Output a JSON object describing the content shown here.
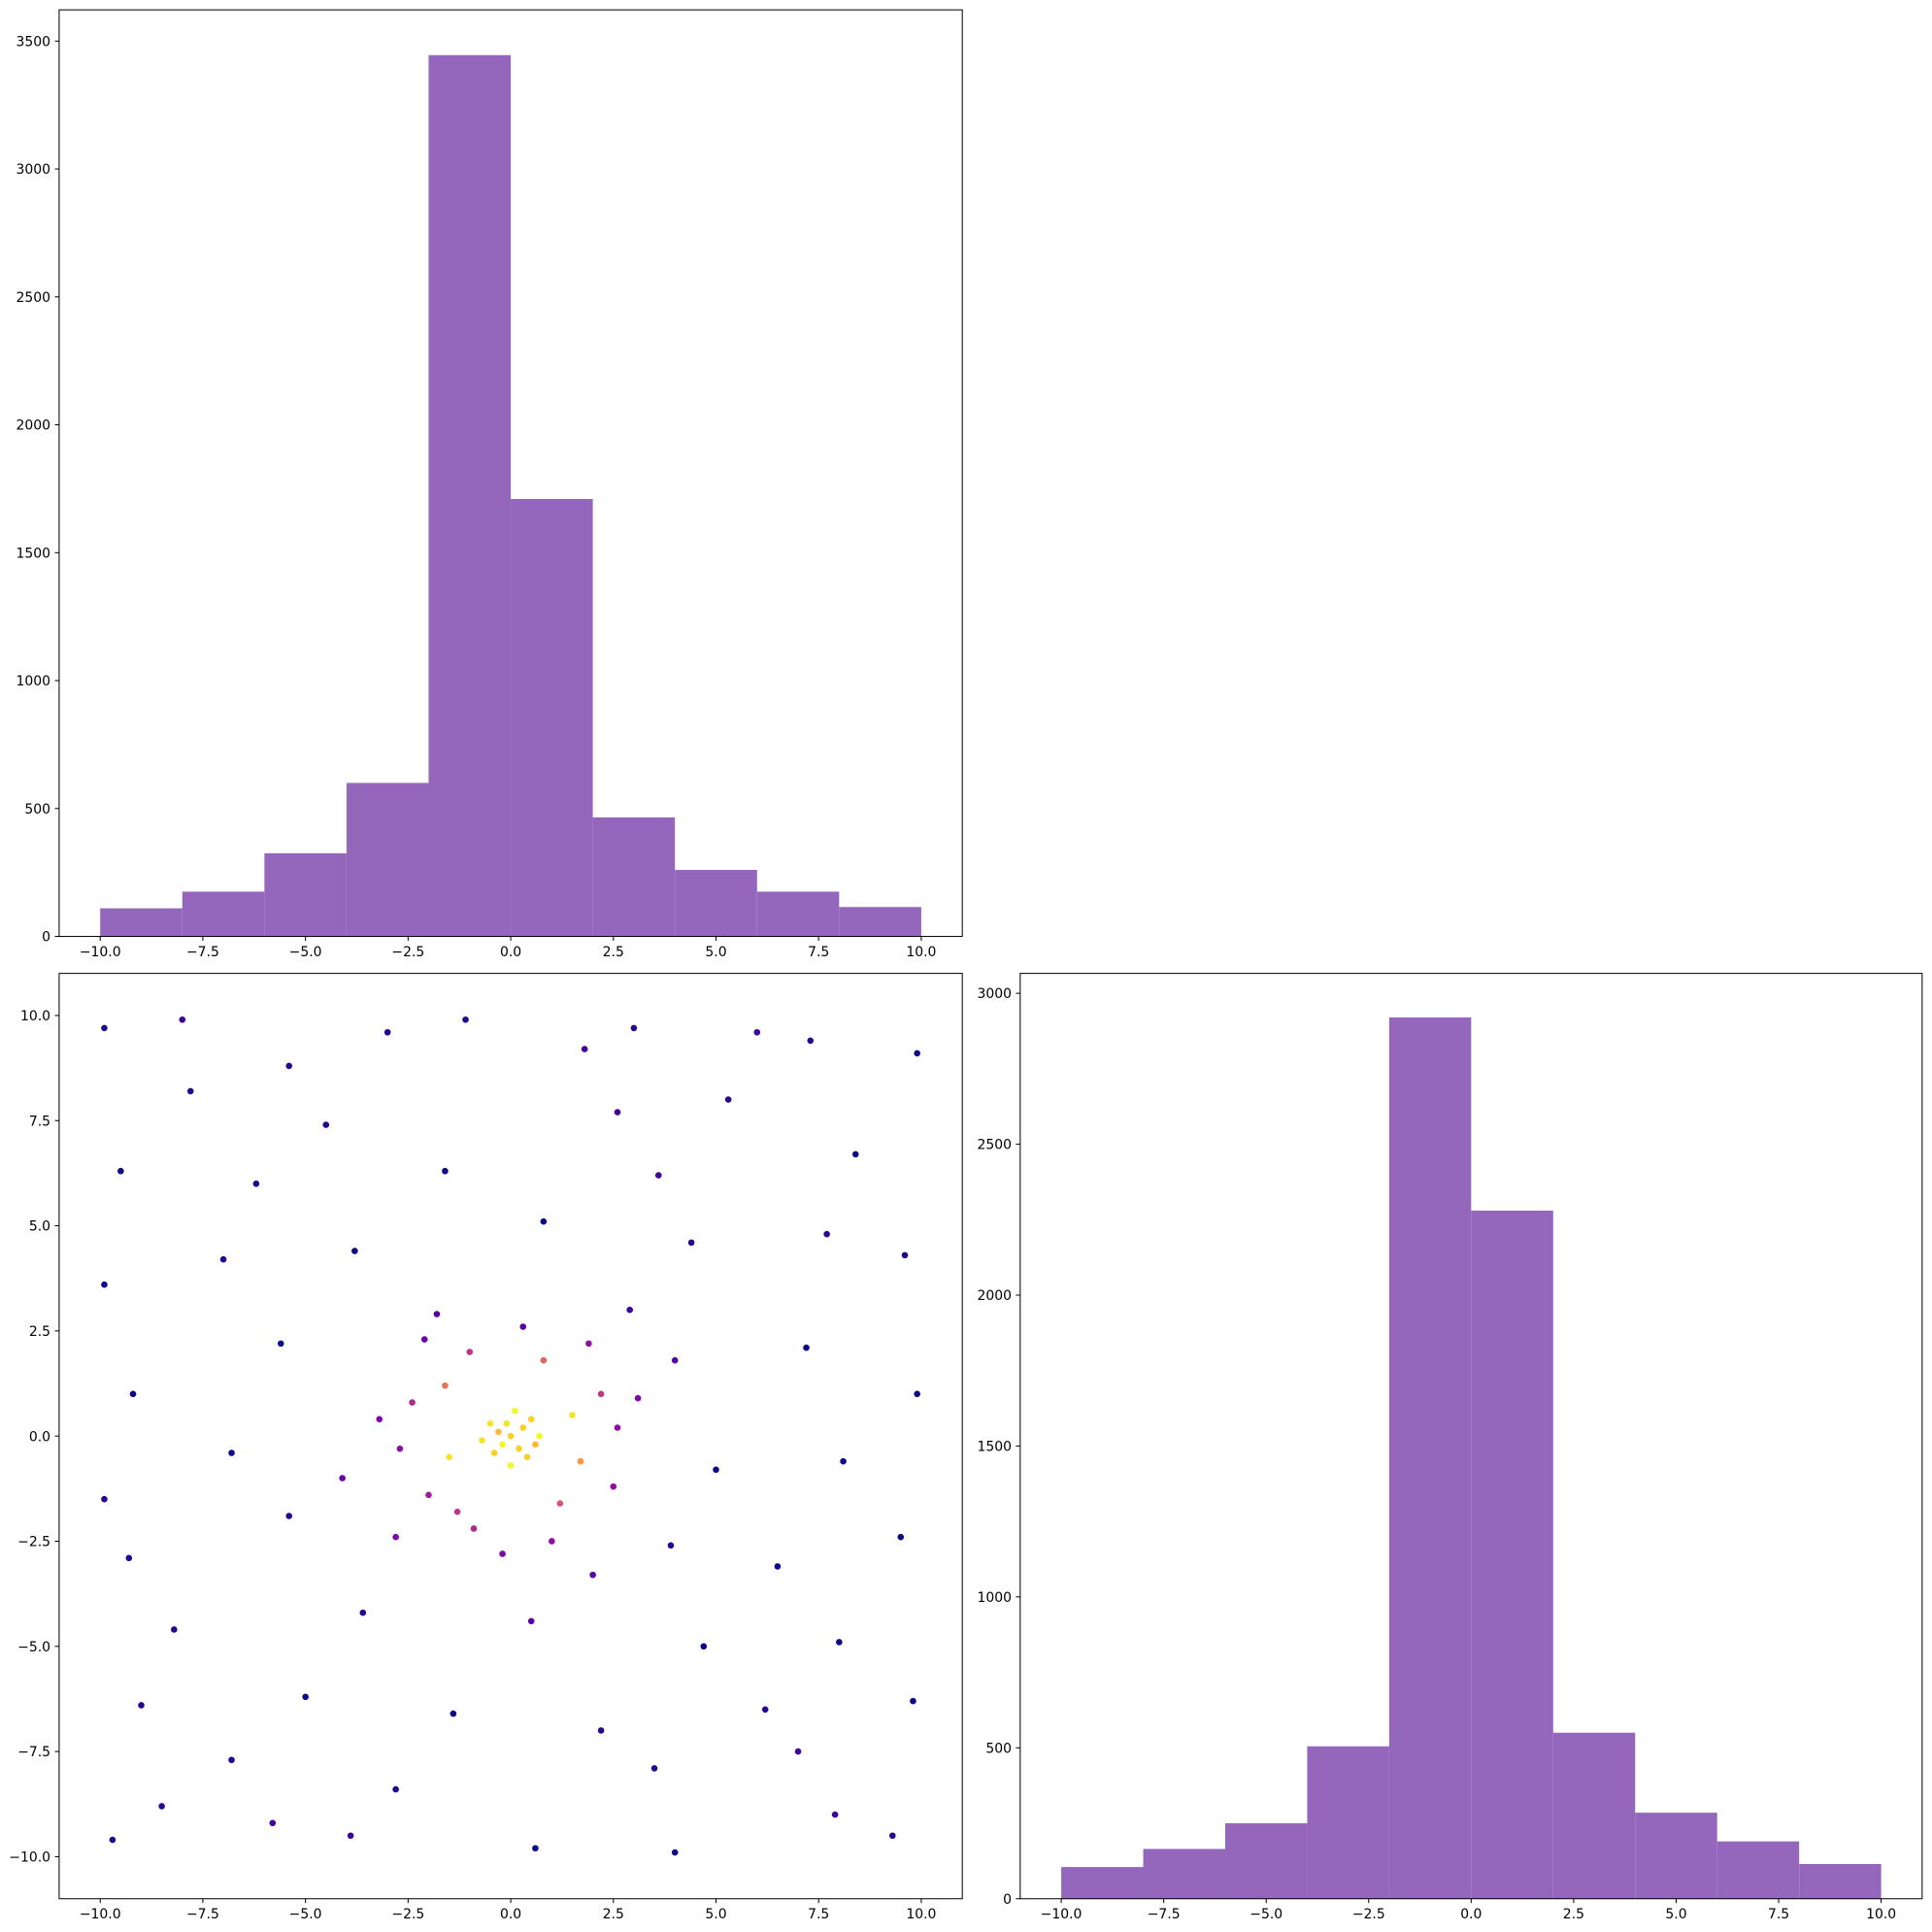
{
  "chart_data": [
    {
      "type": "histogram",
      "color": "#9467bd",
      "bins": [
        -10,
        -8,
        -6,
        -4,
        -2,
        0,
        2,
        4,
        6,
        8,
        10
      ],
      "values": [
        110,
        175,
        325,
        600,
        3445,
        1710,
        465,
        260,
        175,
        115
      ],
      "xlim": [
        -11,
        11
      ],
      "ylim": [
        0,
        3622
      ],
      "xticks": [
        {
          "value": -10,
          "label": "−10.0"
        },
        {
          "value": -7.5,
          "label": "−7.5"
        },
        {
          "value": -5,
          "label": "−5.0"
        },
        {
          "value": -2.5,
          "label": "−2.5"
        },
        {
          "value": 0,
          "label": "0.0"
        },
        2.5,
        {
          "value": 5,
          "label": "5.0"
        },
        7.5,
        {
          "value": 10,
          "label": "10.0"
        }
      ],
      "yticks": [
        0,
        500,
        1000,
        1500,
        2000,
        2500,
        3000,
        3500
      ]
    },
    {
      "type": "scatter",
      "colormap": [
        "#0d0887",
        "#5302a3",
        "#8b0aa5",
        "#b83289",
        "#db5c68",
        "#f48849",
        "#febd2a",
        "#f0f921"
      ],
      "x": [
        0,
        0.3,
        -0.3,
        0.2,
        -0.2,
        0.5,
        -0.5,
        0.4,
        -0.4,
        0.1,
        0,
        0.7,
        -0.7,
        0.6,
        -0.1,
        1.5,
        -1.5,
        0.8,
        -1,
        1.2,
        -1.3,
        2.2,
        -2.4,
        2.5,
        -2,
        0.3,
        -0.2,
        1.9,
        -2.1,
        2.6,
        -2.7,
        1,
        -0.9,
        1.7,
        -1.6,
        -9.9,
        -8,
        -3,
        -1.1,
        3,
        6,
        9.9,
        -9.5,
        -6.2,
        -4.5,
        2.6,
        5.3,
        8.4,
        -9.9,
        -7,
        -3.8,
        0.8,
        4.4,
        7.7,
        9.6,
        -9.2,
        -5.6,
        4,
        7.2,
        9.9,
        -9.9,
        -6.8,
        -4.1,
        5,
        8.1,
        -9.3,
        -5.4,
        3.9,
        6.5,
        9.5,
        -8.2,
        -3.6,
        0.5,
        4.7,
        8,
        -9,
        -5,
        -1.4,
        2.2,
        6.2,
        9.8,
        -8.5,
        -5.8,
        -2.8,
        0.6,
        4,
        7.9,
        -9.7,
        9.3,
        -1.8,
        2,
        -3.2,
        3.1,
        -2.8,
        2.9,
        -7.8,
        -5.4,
        1.8,
        7.3,
        -1.6,
        3.6,
        -6.8,
        3.5,
        -3.9,
        7
      ],
      "y": [
        0,
        0.2,
        0.1,
        -0.3,
        -0.2,
        0.4,
        0.3,
        -0.5,
        -0.4,
        0.6,
        -0.7,
        0,
        -0.1,
        -0.2,
        0.3,
        0.5,
        -0.5,
        1.8,
        2,
        -1.6,
        -1.8,
        1,
        0.8,
        -1.2,
        -1.4,
        2.6,
        -2.8,
        2.2,
        2.3,
        0.2,
        -0.3,
        -2.5,
        -2.2,
        -0.6,
        1.2,
        9.7,
        9.9,
        9.6,
        9.9,
        9.7,
        9.6,
        9.1,
        6.3,
        6,
        7.4,
        7.7,
        8,
        6.7,
        3.6,
        4.2,
        4.4,
        5.1,
        4.6,
        4.8,
        4.3,
        1,
        2.2,
        1.8,
        2.1,
        1,
        -1.5,
        -0.4,
        -1,
        -0.8,
        -0.6,
        -2.9,
        -1.9,
        -2.6,
        -3.1,
        -2.4,
        -4.6,
        -4.2,
        -4.4,
        -5,
        -4.9,
        -6.4,
        -6.2,
        -6.6,
        -7,
        -6.5,
        -6.3,
        -8.8,
        -9.2,
        -8.4,
        -9.8,
        -9.9,
        -9,
        -9.6,
        -9.5,
        2.9,
        -3.3,
        0.4,
        0.9,
        -2.4,
        3,
        8.2,
        8.8,
        9.2,
        9.4,
        6.3,
        6.2,
        -7.7,
        -7.9,
        -9.5,
        -7.5
      ],
      "xlim": [
        -11,
        11
      ],
      "ylim": [
        -11,
        11
      ],
      "xticks": [
        {
          "value": -10,
          "label": "−10.0"
        },
        {
          "value": -7.5,
          "label": "−7.5"
        },
        {
          "value": -5,
          "label": "−5.0"
        },
        {
          "value": -2.5,
          "label": "−2.5"
        },
        {
          "value": 0,
          "label": "0.0"
        },
        2.5,
        {
          "value": 5,
          "label": "5.0"
        },
        7.5,
        {
          "value": 10,
          "label": "10.0"
        }
      ],
      "yticks": [
        {
          "value": -10,
          "label": "−10.0"
        },
        {
          "value": -7.5,
          "label": "−7.5"
        },
        {
          "value": -5,
          "label": "−5.0"
        },
        {
          "value": -2.5,
          "label": "−2.5"
        },
        {
          "value": 0,
          "label": "0.0"
        },
        2.5,
        {
          "value": 5,
          "label": "5.0"
        },
        7.5,
        {
          "value": 10,
          "label": "10.0"
        }
      ]
    },
    {
      "type": "histogram",
      "color": "#9467bd",
      "bins": [
        -10,
        -8,
        -6,
        -4,
        -2,
        0,
        2,
        4,
        6,
        8,
        10
      ],
      "values": [
        105,
        165,
        250,
        505,
        2920,
        2280,
        550,
        285,
        190,
        115
      ],
      "xlim": [
        -11,
        11
      ],
      "ylim": [
        0,
        3066
      ],
      "xticks": [
        {
          "value": -10,
          "label": "−10.0"
        },
        {
          "value": -7.5,
          "label": "−7.5"
        },
        {
          "value": -5,
          "label": "−5.0"
        },
        {
          "value": -2.5,
          "label": "−2.5"
        },
        {
          "value": 0,
          "label": "0.0"
        },
        2.5,
        {
          "value": 5,
          "label": "5.0"
        },
        7.5,
        {
          "value": 10,
          "label": "10.0"
        }
      ],
      "yticks": [
        0,
        500,
        1000,
        1500,
        2000,
        2500,
        3000
      ]
    }
  ]
}
